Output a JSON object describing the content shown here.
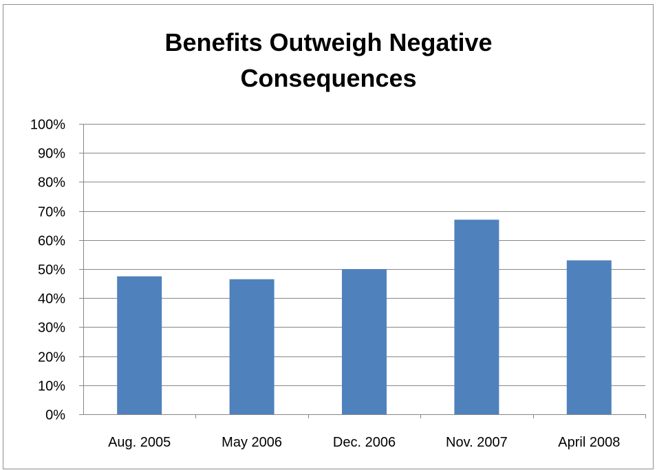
{
  "chart_data": {
    "type": "bar",
    "title_lines": [
      "Benefits Outweigh Negative",
      "Consequences"
    ],
    "categories": [
      "Aug. 2005",
      "May 2006",
      "Dec. 2006",
      "Nov. 2007",
      "April 2008"
    ],
    "values": [
      47.5,
      46.5,
      50,
      67,
      53
    ],
    "y_tick_labels": [
      "0%",
      "10%",
      "20%",
      "30%",
      "40%",
      "50%",
      "60%",
      "70%",
      "80%",
      "90%",
      "100%"
    ],
    "ylim": [
      0,
      100
    ],
    "grid": true,
    "legend": "none",
    "bar_color": "#4f81bd",
    "gridline_color": "#868686"
  }
}
